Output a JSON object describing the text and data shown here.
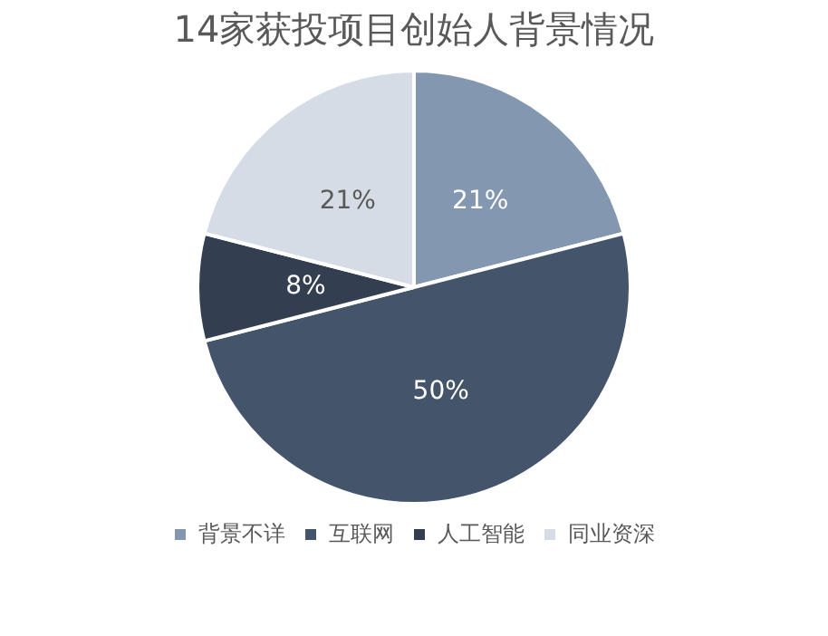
{
  "chart_data": {
    "type": "pie",
    "title": "14家获投项目创始人背景情况",
    "categories": [
      "背景不详",
      "互联网",
      "人工智能",
      "同业资深"
    ],
    "values": [
      21,
      50,
      8,
      21
    ],
    "colors": [
      "#8497b0",
      "#44546a",
      "#333f50",
      "#d6dce5"
    ],
    "value_labels": [
      "21%",
      "50%",
      "8%",
      "21%"
    ],
    "legend": "bottom"
  }
}
